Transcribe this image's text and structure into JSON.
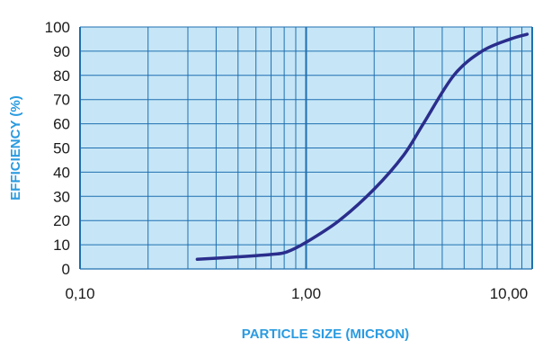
{
  "chart_data": {
    "type": "line",
    "title": "",
    "xlabel": "PARTICLE SIZE (MICRON)",
    "ylabel": "EFFICIENCY (%)",
    "x_scale": "log",
    "xlim": [
      0.1,
      10
    ],
    "ylim": [
      0,
      100
    ],
    "x_ticks": [
      0.1,
      1,
      10
    ],
    "x_tick_labels": [
      "0,10",
      "1,00",
      "10,00"
    ],
    "y_ticks": [
      0,
      10,
      20,
      30,
      40,
      50,
      60,
      70,
      80,
      90,
      100
    ],
    "y_tick_labels": [
      "0",
      "10",
      "20",
      "30",
      "40",
      "50",
      "60",
      "70",
      "80",
      "90",
      "100"
    ],
    "grid": true,
    "series": [
      {
        "x": [
          0.33,
          0.5,
          0.7,
          0.82,
          1.0,
          1.4,
          2.0,
          2.7,
          3.3,
          4.5,
          6.0,
          8.0,
          9.5
        ],
        "y": [
          4,
          5,
          6,
          7,
          11,
          20,
          33,
          47,
          60,
          80,
          90,
          95,
          97
        ]
      }
    ],
    "colors": {
      "plot_background": "#c6e6f7",
      "grid": "#1f6fb0",
      "line": "#2b2e8c",
      "axis_title": "#2a9be0"
    }
  }
}
